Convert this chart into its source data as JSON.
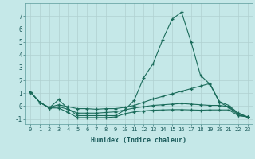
{
  "title": "",
  "xlabel": "Humidex (Indice chaleur)",
  "ylabel": "",
  "bg_color": "#c5e8e8",
  "grid_color": "#b0d0d0",
  "line_color": "#1a6b5a",
  "xlim": [
    -0.5,
    23.5
  ],
  "ylim": [
    -1.4,
    8.0
  ],
  "yticks": [
    -1,
    0,
    1,
    2,
    3,
    4,
    5,
    6,
    7
  ],
  "xticks": [
    0,
    1,
    2,
    3,
    4,
    5,
    6,
    7,
    8,
    9,
    10,
    11,
    12,
    13,
    14,
    15,
    16,
    17,
    18,
    19,
    20,
    21,
    22,
    23
  ],
  "lines": [
    {
      "x": [
        0,
        1,
        2,
        3,
        4,
        5,
        6,
        7,
        8,
        9,
        10,
        11,
        12,
        13,
        14,
        15,
        16,
        17,
        18,
        19,
        20,
        21,
        22,
        23
      ],
      "y": [
        1.1,
        0.3,
        -0.15,
        0.5,
        -0.2,
        -0.75,
        -0.75,
        -0.75,
        -0.75,
        -0.75,
        -0.3,
        0.45,
        2.2,
        3.3,
        5.15,
        6.75,
        7.3,
        5.0,
        2.4,
        1.7,
        0.3,
        -0.1,
        -0.7,
        -0.85
      ]
    },
    {
      "x": [
        0,
        1,
        2,
        3,
        4,
        5,
        6,
        7,
        8,
        9,
        10,
        11,
        12,
        13,
        14,
        15,
        16,
        17,
        18,
        19,
        20,
        21,
        22,
        23
      ],
      "y": [
        1.1,
        0.3,
        -0.1,
        0.1,
        -0.05,
        -0.2,
        -0.2,
        -0.25,
        -0.2,
        -0.2,
        -0.1,
        0.05,
        0.3,
        0.55,
        0.75,
        0.95,
        1.15,
        1.35,
        1.55,
        1.75,
        0.35,
        0.05,
        -0.55,
        -0.85
      ]
    },
    {
      "x": [
        0,
        1,
        2,
        3,
        4,
        5,
        6,
        7,
        8,
        9,
        10,
        11,
        12,
        13,
        14,
        15,
        16,
        17,
        18,
        19,
        20,
        21,
        22,
        23
      ],
      "y": [
        1.1,
        0.3,
        -0.15,
        -0.05,
        -0.25,
        -0.55,
        -0.55,
        -0.55,
        -0.5,
        -0.45,
        -0.3,
        -0.15,
        -0.05,
        0.05,
        0.1,
        0.15,
        0.2,
        0.15,
        0.1,
        0.05,
        0.05,
        -0.05,
        -0.6,
        -0.85
      ]
    },
    {
      "x": [
        0,
        1,
        2,
        3,
        4,
        5,
        6,
        7,
        8,
        9,
        10,
        11,
        12,
        13,
        14,
        15,
        16,
        17,
        18,
        19,
        20,
        21,
        22,
        23
      ],
      "y": [
        1.1,
        0.3,
        -0.15,
        -0.15,
        -0.5,
        -0.9,
        -0.9,
        -0.9,
        -0.9,
        -0.85,
        -0.6,
        -0.45,
        -0.38,
        -0.32,
        -0.3,
        -0.28,
        -0.28,
        -0.3,
        -0.32,
        -0.3,
        -0.3,
        -0.3,
        -0.75,
        -0.85
      ]
    }
  ]
}
